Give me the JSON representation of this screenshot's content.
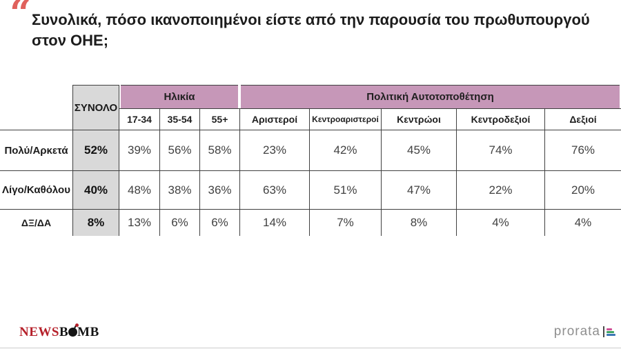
{
  "title": {
    "quote": "“",
    "line1": "Συνολικά, πόσο ικανοποιημένοι είστε από την παρουσία του πρωθυπουργού",
    "line2": "στον ΟΗΕ;"
  },
  "table": {
    "total_header": "ΣΥΝΟΛΟ",
    "groups": [
      {
        "label": "Ηλικία",
        "columns": [
          "17-34",
          "35-54",
          "55+"
        ]
      },
      {
        "label": "Πολιτική Αυτοτοποθέτηση",
        "columns": [
          "Αριστεροί",
          "Κεντροαριστεροί",
          "Κεντρώοι",
          "Κεντροδεξιοί",
          "Δεξιοί"
        ]
      }
    ],
    "rows": [
      {
        "label": "Πολύ/Αρκετά",
        "total": "52%",
        "values": [
          "39%",
          "56%",
          "58%",
          "23%",
          "42%",
          "45%",
          "74%",
          "76%"
        ]
      },
      {
        "label": "Λίγο/Καθόλου",
        "total": "40%",
        "values": [
          "48%",
          "38%",
          "36%",
          "63%",
          "51%",
          "47%",
          "22%",
          "20%"
        ]
      },
      {
        "label": "ΔΞ/ΔΑ",
        "total": "8%",
        "values": [
          "13%",
          "6%",
          "6%",
          "14%",
          "7%",
          "8%",
          "4%",
          "4%"
        ]
      }
    ]
  },
  "chart_data": {
    "type": "table",
    "title": "Συνολικά, πόσο ικανοποιημένοι είστε από την παρουσία του πρωθυπουργού στον ΟΗΕ;",
    "columns": [
      "ΣΥΝΟΛΟ",
      "17-34",
      "35-54",
      "55+",
      "Αριστεροί",
      "Κεντροαριστεροί",
      "Κεντρώοι",
      "Κεντροδεξιοί",
      "Δεξιοί"
    ],
    "column_groups": [
      {
        "label": "Ηλικία",
        "span": [
          "17-34",
          "35-54",
          "55+"
        ]
      },
      {
        "label": "Πολιτική Αυτοτοποθέτηση",
        "span": [
          "Αριστεροί",
          "Κεντροαριστεροί",
          "Κεντρώοι",
          "Κεντροδεξιοί",
          "Δεξιοί"
        ]
      }
    ],
    "row_categories": [
      "Πολύ/Αρκετά",
      "Λίγο/Καθόλου",
      "ΔΞ/ΔΑ"
    ],
    "values_percent": [
      [
        52,
        39,
        56,
        58,
        23,
        42,
        45,
        74,
        76
      ],
      [
        40,
        48,
        38,
        36,
        63,
        51,
        47,
        22,
        20
      ],
      [
        8,
        13,
        6,
        6,
        14,
        7,
        8,
        4,
        4
      ]
    ]
  },
  "footer": {
    "newsbomb": {
      "news": "NEWS",
      "b": "B",
      "mb": "MB"
    },
    "prorata": "prorata"
  },
  "colors": {
    "group_header_pink": "#c697b8",
    "total_column_gray": "#d9d9d9",
    "table_line": "#3f3f3f",
    "quote_red": "#e0615c",
    "newsbomb_red": "#b5202a",
    "prorata_gray": "#8f8f8f",
    "prorata_bars": [
      "#cf4f96",
      "#3fa463",
      "#3c77b5"
    ]
  }
}
